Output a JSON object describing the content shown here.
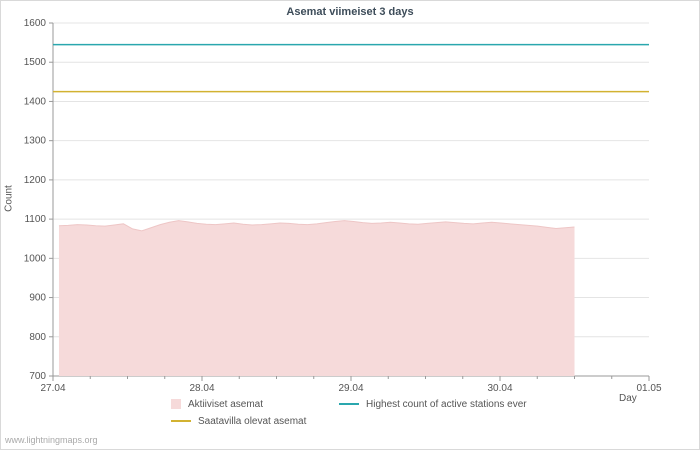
{
  "watermark": "www.lightningmaps.org",
  "chart_data": {
    "type": "area",
    "title": "Asemat viimeiset 3 days",
    "xlabel": "Day",
    "ylabel": "Count",
    "ylim": [
      700,
      1600
    ],
    "ytick_step": 100,
    "x_ticks": [
      "27.04",
      "28.04",
      "29.04",
      "30.04",
      "01.05"
    ],
    "grid": "horizontal",
    "legend_position": "bottom",
    "series": [
      {
        "name": "Aktiiviset asemat",
        "type": "area",
        "color": "#f6dada",
        "edge_color": "#eec6c6",
        "x_start": 0.04,
        "x_end": 3.5,
        "values": [
          1083,
          1084,
          1086,
          1085,
          1083,
          1082,
          1085,
          1088,
          1075,
          1070,
          1078,
          1086,
          1092,
          1096,
          1093,
          1089,
          1087,
          1086,
          1088,
          1090,
          1087,
          1085,
          1086,
          1088,
          1090,
          1089,
          1087,
          1086,
          1088,
          1091,
          1094,
          1096,
          1094,
          1091,
          1089,
          1090,
          1092,
          1090,
          1088,
          1087,
          1089,
          1091,
          1093,
          1091,
          1089,
          1088,
          1090,
          1092,
          1090,
          1088,
          1086,
          1084,
          1082,
          1079,
          1076,
          1078,
          1080
        ]
      },
      {
        "name": "Highest count of active stations ever",
        "type": "hline",
        "color": "#2aa7ae",
        "value": 1545
      },
      {
        "name": "Saatavilla olevat asemat",
        "type": "hline",
        "color": "#d2b231",
        "value": 1425
      }
    ]
  }
}
